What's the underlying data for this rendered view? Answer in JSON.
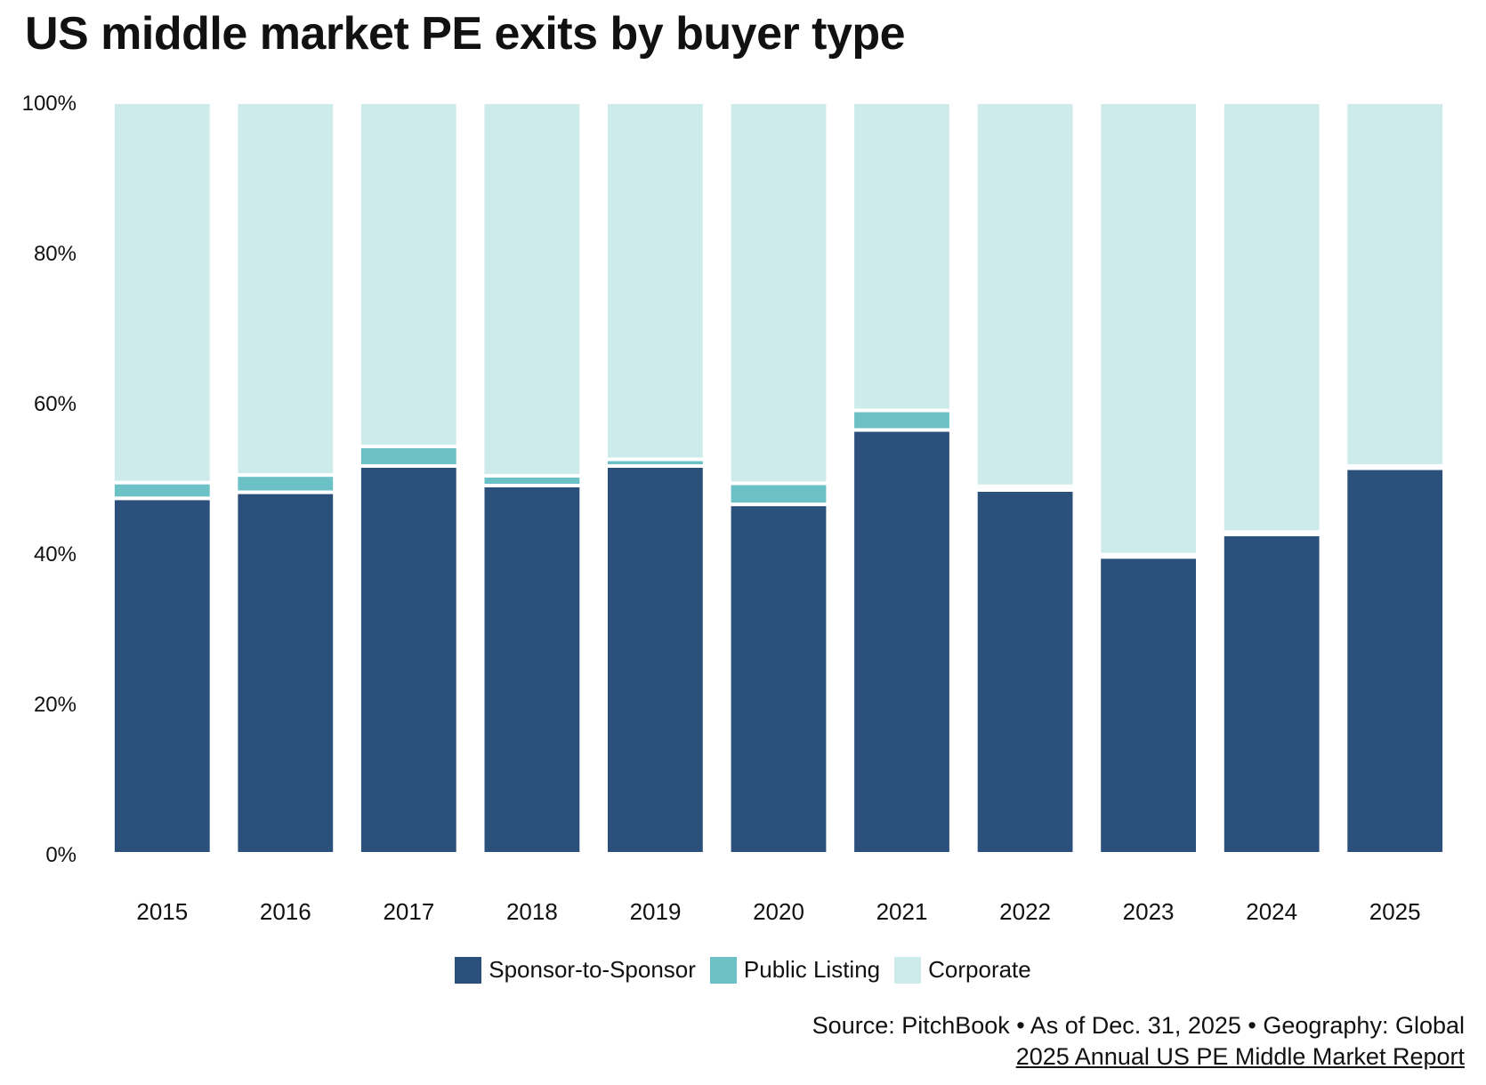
{
  "chart_data": {
    "type": "bar",
    "stacked": true,
    "title": "US middle market PE exits by buyer type",
    "xlabel": "",
    "ylabel": "",
    "ylim": [
      0,
      100
    ],
    "y_ticks": [
      "0%",
      "20%",
      "40%",
      "60%",
      "80%",
      "100%"
    ],
    "y_tick_values": [
      0,
      20,
      40,
      60,
      80,
      100
    ],
    "grid": false,
    "legend_position": "bottom-center",
    "categories": [
      "2015",
      "2016",
      "2017",
      "2018",
      "2019",
      "2020",
      "2021",
      "2022",
      "2023",
      "2024",
      "2025"
    ],
    "series": [
      {
        "name": "Sponsor-to-Sponsor",
        "color": "#2b507b",
        "values": [
          47.3,
          48.1,
          51.6,
          49.0,
          51.6,
          46.5,
          56.4,
          48.4,
          39.5,
          42.5,
          51.3
        ]
      },
      {
        "name": "Public Listing",
        "color": "#6bc1c5",
        "values": [
          2.1,
          2.3,
          2.6,
          1.3,
          0.9,
          2.8,
          2.6,
          0.5,
          0.3,
          0.3,
          0.3
        ]
      },
      {
        "name": "Corporate",
        "color": "#cdebea",
        "values": [
          50.6,
          49.6,
          45.8,
          49.7,
          47.5,
          50.7,
          41.0,
          51.1,
          60.2,
          57.2,
          48.4
        ]
      }
    ]
  },
  "footer": {
    "source": "Source: PitchBook • As of Dec. 31, 2025 • Geography: Global",
    "report": "2025 Annual US PE Middle Market Report"
  }
}
